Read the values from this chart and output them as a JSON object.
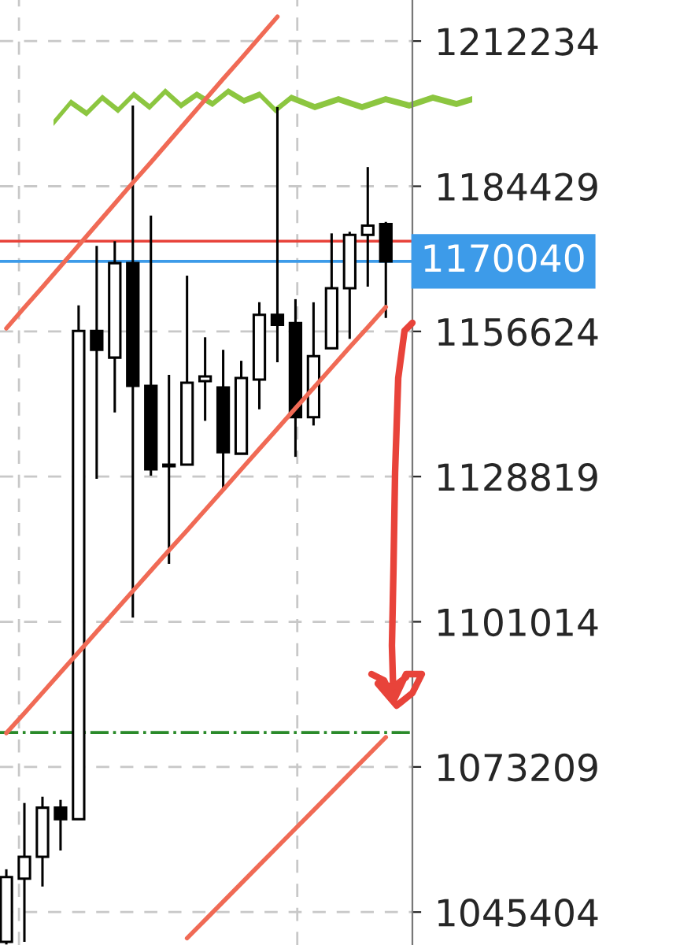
{
  "chart_data": {
    "type": "candlestick",
    "categories": [
      null,
      null,
      null,
      null,
      null,
      null,
      null,
      null,
      null,
      null,
      null,
      null,
      null,
      null,
      null,
      null,
      null,
      null,
      null,
      null,
      null,
      null
    ],
    "ohlc": [
      [
        1039700,
        1053600,
        1039200,
        1052100
      ],
      [
        1051800,
        1066300,
        1039700,
        1056000
      ],
      [
        1056000,
        1067500,
        1050300,
        1065400
      ],
      [
        1065400,
        1066900,
        1057200,
        1063200
      ],
      [
        1063200,
        1161600,
        1063200,
        1156700
      ],
      [
        1156700,
        1173000,
        1128400,
        1153100
      ],
      [
        1151600,
        1173900,
        1141100,
        1169700
      ],
      [
        1169700,
        1199900,
        1101800,
        1146200
      ],
      [
        1146200,
        1178800,
        1129000,
        1130200
      ],
      [
        1131100,
        1148300,
        1112100,
        1130800
      ],
      [
        1131100,
        1167300,
        1131100,
        1146800
      ],
      [
        1147100,
        1155500,
        1139500,
        1148000
      ],
      [
        1145900,
        1153100,
        1126000,
        1133500
      ],
      [
        1133200,
        1151000,
        1133200,
        1147700
      ],
      [
        1147400,
        1162200,
        1141700,
        1159800
      ],
      [
        1159800,
        1199600,
        1150700,
        1157900
      ],
      [
        1158200,
        1162800,
        1132600,
        1140200
      ],
      [
        1140200,
        1162200,
        1138600,
        1151900
      ],
      [
        1153400,
        1175400,
        1153400,
        1164900
      ],
      [
        1164900,
        1175700,
        1155200,
        1175100
      ],
      [
        1175100,
        1188100,
        1165200,
        1176900
      ],
      [
        1177200,
        1177600,
        1159200,
        1170040
      ]
    ],
    "series": [
      {
        "type": "line",
        "color": "#f06a55",
        "values": [
          1157200,
          1161200,
          1165100,
          1169100,
          1173100,
          1177100,
          1181100,
          1185100,
          1189000,
          1193000,
          1197000,
          1201000,
          1205000,
          1208900,
          1212900,
          1216900,
          null,
          null,
          null,
          null,
          null,
          null
        ]
      },
      {
        "type": "line",
        "color": "#f06a55",
        "values": [
          1079700,
          1083500,
          1087400,
          1091300,
          1095200,
          1099100,
          1103000,
          1106900,
          1110800,
          1114700,
          1118500,
          1122400,
          1126300,
          1130200,
          1134100,
          1138000,
          1141900,
          1145800,
          1149700,
          1153600,
          1157400,
          1161300
        ]
      },
      {
        "type": "line",
        "color": "#f06a55",
        "values": [
          null,
          null,
          null,
          null,
          null,
          null,
          null,
          null,
          null,
          null,
          1040400,
          1043900,
          1047400,
          1050900,
          1054400,
          1057900,
          1061400,
          1064900,
          1068400,
          1071900,
          1075400,
          1078900
        ]
      }
    ],
    "ylim": [
      1039100,
      1220100
    ],
    "yticks": [
      1045404,
      1073209,
      1101014,
      1128819,
      1156624,
      1184429,
      1212234
    ],
    "ref_lines": [
      {
        "axis": "y",
        "value": 1173900,
        "color": "#e8433a",
        "line_style": "solid"
      },
      {
        "axis": "y",
        "value": 1170040,
        "label": "1170040",
        "color": "#3d9be9",
        "line_style": "solid"
      },
      {
        "axis": "y",
        "value": 1079800,
        "color": "#2a8a2a",
        "line_style": "dashed"
      }
    ],
    "grid": true,
    "tick_labels": "y"
  }
}
